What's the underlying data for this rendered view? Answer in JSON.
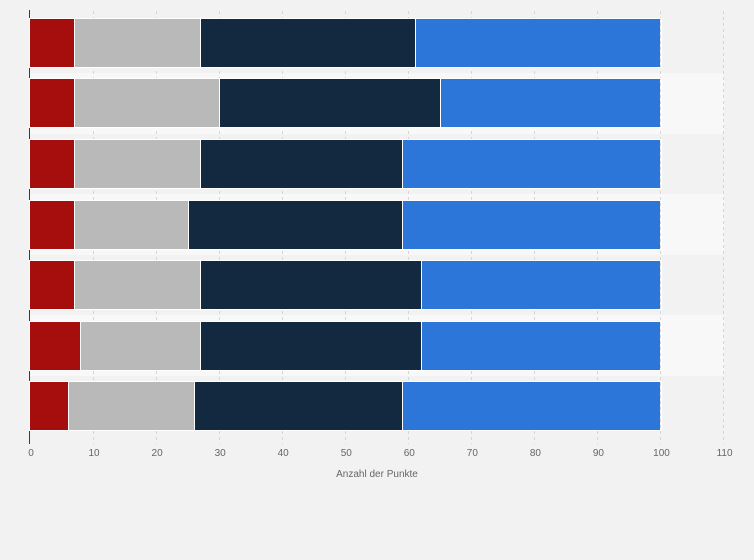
{
  "page": {
    "background_color": "#f2f2f2"
  },
  "chart_data": {
    "type": "bar",
    "orientation": "horizontal",
    "stacked": true,
    "title": "",
    "xlabel": "Anzahl der Punkte",
    "ylabel": "",
    "xlim": [
      0,
      110
    ],
    "x_ticks": [
      0,
      10,
      20,
      30,
      40,
      50,
      60,
      70,
      80,
      90,
      100,
      110
    ],
    "grid": "vertical-dashed",
    "grid_color": "#d6d6d6",
    "axis_line_color": "#3a3a3a",
    "tick_label_color": "#666666",
    "legend": "none",
    "plot_band_colors": [
      "#f2f2f2",
      "#f8f8f8"
    ],
    "categories": [
      "",
      "",
      "",
      "",
      "",
      "",
      ""
    ],
    "series": [
      {
        "name": "dark-red-segment",
        "color": "#a60d0d",
        "values": [
          7,
          7,
          7,
          7,
          7,
          8,
          6
        ]
      },
      {
        "name": "gray-segment",
        "color": "#b9b9b9",
        "values": [
          20,
          23,
          20,
          18,
          20,
          19,
          20
        ]
      },
      {
        "name": "dark-navy-segment",
        "color": "#13293f",
        "values": [
          34,
          35,
          32,
          34,
          35,
          35,
          33
        ]
      },
      {
        "name": "blue-segment",
        "color": "#2b76d8",
        "values": [
          39,
          35,
          41,
          41,
          38,
          38,
          41
        ]
      }
    ],
    "bar_totals": [
      100,
      100,
      100,
      100,
      100,
      100,
      100
    ]
  }
}
